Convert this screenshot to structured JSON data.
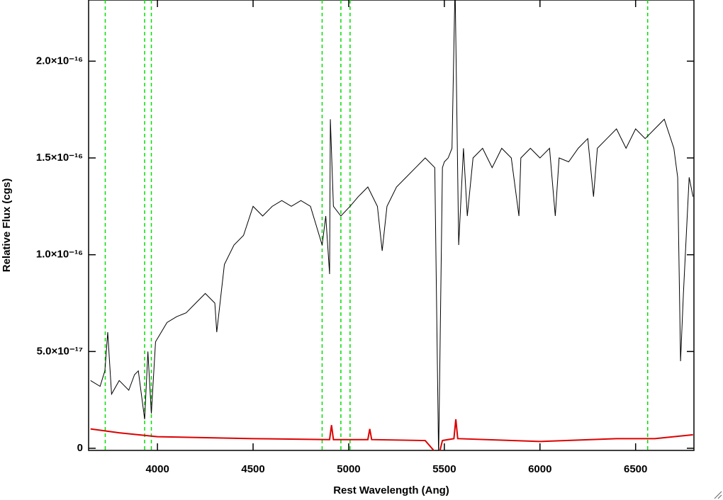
{
  "chart_data": {
    "type": "line",
    "x_label": "Rest Wavelength (Ang)",
    "y_label": "Relative Flux (cgs)",
    "xlim": [
      3640,
      6805
    ],
    "ylim": [
      -1.1e-18,
      2.316e-16
    ],
    "xticks": [
      4000,
      4500,
      5000,
      5500,
      6000,
      6500
    ],
    "yticks": [
      0,
      {
        "value": 5e-17,
        "label": "5.0×10⁻¹⁷"
      },
      {
        "value": 1e-16,
        "label": "1.0×10⁻¹⁶"
      },
      {
        "value": 1.5e-16,
        "label": "1.5×10⁻¹⁶"
      },
      {
        "value": 2e-16,
        "label": "2.0×10⁻¹⁶"
      }
    ],
    "vlines": [
      3727,
      3933,
      3968,
      4861,
      4959,
      5007,
      6563
    ],
    "vline_color": "#00dd00",
    "series": [
      {
        "color": "#000000",
        "x": [
          3650,
          3700,
          3725,
          3740,
          3760,
          3800,
          3850,
          3880,
          3900,
          3933,
          3950,
          3968,
          3990,
          4050,
          4100,
          4150,
          4200,
          4250,
          4300,
          4310,
          4350,
          4400,
          4450,
          4500,
          4550,
          4600,
          4650,
          4700,
          4750,
          4800,
          4861,
          4880,
          4900,
          4904,
          4920,
          4959,
          5007,
          5050,
          5100,
          5150,
          5175,
          5200,
          5250,
          5300,
          5350,
          5400,
          5450,
          5470,
          5490,
          5500,
          5520,
          5540,
          5556,
          5575,
          5600,
          5620,
          5650,
          5700,
          5750,
          5800,
          5850,
          5890,
          5900,
          5950,
          6000,
          6050,
          6080,
          6100,
          6150,
          6200,
          6250,
          6280,
          6300,
          6350,
          6400,
          6450,
          6500,
          6550,
          6600,
          6650,
          6700,
          6720,
          6735,
          6750,
          6780,
          6800
        ],
        "values": [
          3.5e-17,
          3.2e-17,
          4e-17,
          6e-17,
          2.8e-17,
          3.5e-17,
          3e-17,
          3.8e-17,
          4e-17,
          1.5e-17,
          5e-17,
          1.8e-17,
          5.5e-17,
          6.5e-17,
          6.8e-17,
          7e-17,
          7.5e-17,
          8e-17,
          7.5e-17,
          6e-17,
          9.5e-17,
          1.05e-16,
          1.1e-16,
          1.25e-16,
          1.2e-16,
          1.25e-16,
          1.28e-16,
          1.25e-16,
          1.28e-16,
          1.25e-16,
          1.05e-16,
          1.2e-16,
          9e-17,
          1.7e-16,
          1.25e-16,
          1.2e-16,
          1.25e-16,
          1.3e-16,
          1.35e-16,
          1.25e-16,
          1.02e-16,
          1.25e-16,
          1.35e-16,
          1.4e-16,
          1.45e-16,
          1.5e-16,
          1.45e-16,
          -5e-18,
          1.45e-16,
          1.48e-16,
          1.5e-16,
          1.55e-16,
          2.4e-16,
          1.05e-16,
          1.55e-16,
          1.2e-16,
          1.5e-16,
          1.55e-16,
          1.45e-16,
          1.55e-16,
          1.5e-16,
          1.2e-16,
          1.5e-16,
          1.55e-16,
          1.5e-16,
          1.55e-16,
          1.2e-16,
          1.5e-16,
          1.48e-16,
          1.55e-16,
          1.6e-16,
          1.3e-16,
          1.55e-16,
          1.6e-16,
          1.65e-16,
          1.55e-16,
          1.65e-16,
          1.6e-16,
          1.65e-16,
          1.7e-16,
          1.55e-16,
          1.4e-16,
          4.5e-17,
          8e-17,
          1.4e-16,
          1.3e-16
        ]
      },
      {
        "color": "#dd0000",
        "x": [
          3650,
          3800,
          4000,
          4500,
          4900,
          4910,
          4920,
          5100,
          5110,
          5120,
          5400,
          5470,
          5490,
          5550,
          5560,
          5570,
          6000,
          6400,
          6600,
          6800
        ],
        "values": [
          1e-17,
          8e-18,
          6e-18,
          5e-18,
          4.5e-18,
          1.2e-17,
          4.5e-18,
          4.5e-18,
          1e-17,
          4.5e-18,
          4e-18,
          -4e-18,
          4e-18,
          5e-18,
          1.5e-17,
          5e-18,
          3.5e-18,
          5e-18,
          5e-18,
          7e-18
        ]
      }
    ]
  }
}
